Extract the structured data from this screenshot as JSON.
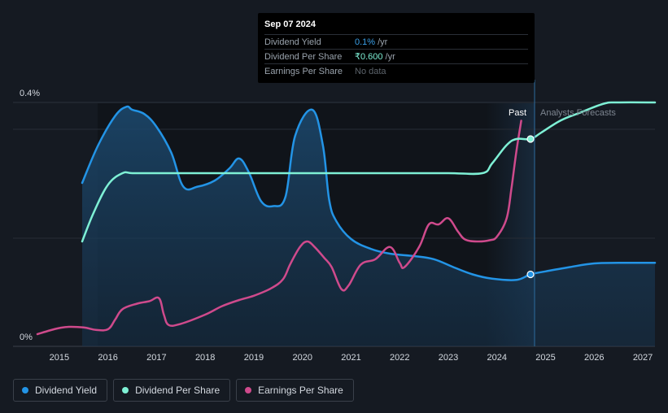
{
  "tooltip": {
    "date": "Sep 07 2024",
    "rows": [
      {
        "label": "Dividend Yield",
        "value": "0.1%",
        "unit": "/yr"
      },
      {
        "label": "Dividend Per Share",
        "value": "₹0.600",
        "unit": "/yr"
      },
      {
        "label": "Earnings Per Share",
        "value": "No data",
        "unit": ""
      }
    ]
  },
  "labels": {
    "past": "Past",
    "forecast": "Analysts Forecasts",
    "y_top": "0.4%",
    "y_bottom": "0%"
  },
  "legend": [
    {
      "label": "Dividend Yield",
      "color": "#2394e6"
    },
    {
      "label": "Dividend Per Share",
      "color": "#7ef0d5"
    },
    {
      "label": "Earnings Per Share",
      "color": "#cf4a8c"
    }
  ],
  "chart_data": {
    "type": "line",
    "x_ticks": [
      "2015",
      "2016",
      "2017",
      "2018",
      "2019",
      "2020",
      "2021",
      "2022",
      "2023",
      "2024",
      "2025",
      "2026",
      "2027"
    ],
    "x_tick_values": [
      2015,
      2016,
      2017,
      2018,
      2019,
      2020,
      2021,
      2022,
      2023,
      2024,
      2025,
      2026,
      2027
    ],
    "xlim": [
      2014.55,
      2027.25
    ],
    "ylim": [
      0,
      0.4
    ],
    "y_ticks": [
      "0%",
      "0.4%"
    ],
    "y_unit": "%",
    "past_forecast_boundary": 2024.69,
    "tooltip_x": 2024.69,
    "series": [
      {
        "name": "Dividend Yield",
        "color": "#2394e6",
        "filled": true,
        "points": [
          [
            2015.47,
            0.268
          ],
          [
            2015.8,
            0.33
          ],
          [
            2016.15,
            0.378
          ],
          [
            2016.38,
            0.393
          ],
          [
            2016.5,
            0.388
          ],
          [
            2016.75,
            0.381
          ],
          [
            2017.0,
            0.36
          ],
          [
            2017.3,
            0.318
          ],
          [
            2017.55,
            0.262
          ],
          [
            2017.85,
            0.262
          ],
          [
            2018.2,
            0.272
          ],
          [
            2018.5,
            0.292
          ],
          [
            2018.7,
            0.308
          ],
          [
            2018.9,
            0.285
          ],
          [
            2019.15,
            0.238
          ],
          [
            2019.4,
            0.23
          ],
          [
            2019.65,
            0.245
          ],
          [
            2019.85,
            0.345
          ],
          [
            2020.2,
            0.388
          ],
          [
            2020.42,
            0.33
          ],
          [
            2020.55,
            0.24
          ],
          [
            2020.7,
            0.205
          ],
          [
            2021.0,
            0.176
          ],
          [
            2021.4,
            0.16
          ],
          [
            2021.8,
            0.152
          ],
          [
            2022.3,
            0.148
          ],
          [
            2022.7,
            0.143
          ],
          [
            2023.1,
            0.13
          ],
          [
            2023.5,
            0.118
          ],
          [
            2023.9,
            0.111
          ],
          [
            2024.4,
            0.109
          ],
          [
            2024.69,
            0.118
          ],
          [
            2025.0,
            0.123
          ],
          [
            2025.5,
            0.13
          ],
          [
            2026.0,
            0.136
          ],
          [
            2026.5,
            0.137
          ],
          [
            2027.25,
            0.137
          ]
        ]
      },
      {
        "name": "Dividend Per Share",
        "color": "#7ef0d5",
        "filled": false,
        "points": [
          [
            2015.47,
            0.172
          ],
          [
            2015.7,
            0.218
          ],
          [
            2016.0,
            0.265
          ],
          [
            2016.3,
            0.284
          ],
          [
            2016.5,
            0.284
          ],
          [
            2017.0,
            0.284
          ],
          [
            2018.0,
            0.284
          ],
          [
            2019.0,
            0.284
          ],
          [
            2020.0,
            0.284
          ],
          [
            2021.0,
            0.284
          ],
          [
            2022.0,
            0.284
          ],
          [
            2023.0,
            0.284
          ],
          [
            2023.7,
            0.284
          ],
          [
            2023.9,
            0.3
          ],
          [
            2024.2,
            0.33
          ],
          [
            2024.4,
            0.34
          ],
          [
            2024.69,
            0.34
          ],
          [
            2024.9,
            0.35
          ],
          [
            2025.3,
            0.37
          ],
          [
            2025.7,
            0.383
          ],
          [
            2026.2,
            0.398
          ],
          [
            2026.5,
            0.4
          ],
          [
            2027.25,
            0.4
          ]
        ]
      },
      {
        "name": "Earnings Per Share",
        "color": "#cf4a8c",
        "filled": false,
        "points": [
          [
            2014.55,
            0.02
          ],
          [
            2014.8,
            0.026
          ],
          [
            2015.0,
            0.03
          ],
          [
            2015.2,
            0.032
          ],
          [
            2015.5,
            0.031
          ],
          [
            2015.75,
            0.027
          ],
          [
            2016.0,
            0.028
          ],
          [
            2016.15,
            0.044
          ],
          [
            2016.3,
            0.061
          ],
          [
            2016.6,
            0.07
          ],
          [
            2016.85,
            0.074
          ],
          [
            2017.05,
            0.079
          ],
          [
            2017.15,
            0.052
          ],
          [
            2017.25,
            0.035
          ],
          [
            2017.5,
            0.037
          ],
          [
            2018.0,
            0.052
          ],
          [
            2018.35,
            0.066
          ],
          [
            2018.7,
            0.076
          ],
          [
            2019.0,
            0.083
          ],
          [
            2019.35,
            0.095
          ],
          [
            2019.6,
            0.11
          ],
          [
            2019.75,
            0.135
          ],
          [
            2019.95,
            0.163
          ],
          [
            2020.1,
            0.172
          ],
          [
            2020.25,
            0.163
          ],
          [
            2020.45,
            0.145
          ],
          [
            2020.6,
            0.13
          ],
          [
            2020.8,
            0.094
          ],
          [
            2020.95,
            0.1
          ],
          [
            2021.2,
            0.134
          ],
          [
            2021.5,
            0.143
          ],
          [
            2021.8,
            0.163
          ],
          [
            2022.0,
            0.137
          ],
          [
            2022.1,
            0.13
          ],
          [
            2022.4,
            0.163
          ],
          [
            2022.6,
            0.2
          ],
          [
            2022.8,
            0.2
          ],
          [
            2023.0,
            0.21
          ],
          [
            2023.2,
            0.188
          ],
          [
            2023.35,
            0.175
          ],
          [
            2023.6,
            0.172
          ],
          [
            2023.85,
            0.174
          ],
          [
            2024.0,
            0.18
          ],
          [
            2024.2,
            0.21
          ],
          [
            2024.3,
            0.26
          ],
          [
            2024.4,
            0.32
          ],
          [
            2024.5,
            0.37
          ]
        ]
      }
    ],
    "markers": [
      {
        "series": "Dividend Yield",
        "x": 2024.69,
        "y": 0.118
      },
      {
        "series": "Dividend Per Share",
        "x": 2024.69,
        "y": 0.34
      }
    ]
  }
}
